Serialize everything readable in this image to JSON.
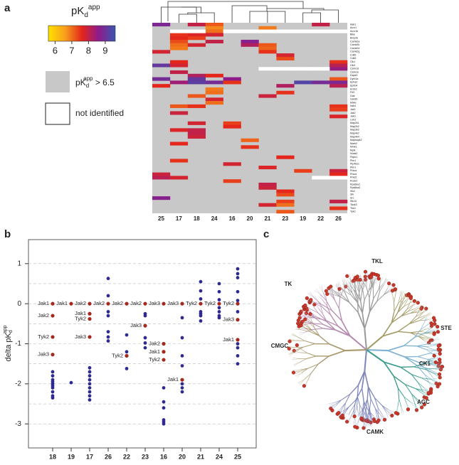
{
  "chart_data": [
    {
      "type": "heatmap",
      "panel": "a",
      "legend_title": [
        "pK",
        "d",
        "app"
      ],
      "colorscale": [
        "#ffe100",
        "#f7a01c",
        "#e4261b",
        "#8e1b8a",
        "#3a55b0"
      ],
      "clim": [
        5.6,
        9.6
      ],
      "cticks": [
        6,
        7,
        8,
        9
      ],
      "gray_label": [
        "pK",
        "d",
        "app",
        " > 6.5"
      ],
      "gray_color": "#c8c8c8",
      "missing_label": "not identified",
      "columns": [
        "25",
        "17",
        "18",
        "24",
        "16",
        "20",
        "21",
        "23",
        "19",
        "22",
        "26"
      ],
      "rows": [
        "Aak1",
        "Acvr1",
        "Acvr1b",
        "Bike",
        "Bmp2k",
        "Camk2a",
        "Camk2b",
        "Camk2d",
        "Camk2g",
        "Cdk5",
        "Cdk9",
        "Clk1",
        "Clk3",
        "Csnk1d",
        "Csnk1e",
        "Dapk3",
        "Dyrk1a",
        "Epha2",
        "Ephb4",
        "Erbb2",
        "Flt3",
        "Gak",
        "Gsk3b",
        "Ikbke",
        "Irak4",
        "Jak1",
        "Jak2",
        "Jak3",
        "Lrrk2",
        "Map2k1",
        "Map2k2",
        "Map3k2",
        "Map4k2",
        "Map4k4",
        "Mapkapk2",
        "Mark2",
        "Mink1",
        "Mylk",
        "Nuak2",
        "Pdpk1",
        "Pim1",
        "Pip4k2c",
        "Pkn1",
        "Prkca",
        "Prkcd",
        "Prkd2",
        "Rock2",
        "Rps6ka1",
        "Rps6ka3",
        "Sik2",
        "Slk",
        "Src",
        "Stk10",
        "Taok3",
        "Tbk1",
        "Tyk2"
      ],
      "values": [
        [
          8.8,
          null,
          8.0,
          7.2,
          null,
          null,
          null,
          null,
          null,
          8.0,
          null
        ],
        [
          null,
          null,
          null,
          6.8,
          null,
          null,
          6.9,
          null,
          null,
          null,
          null
        ],
        [
          null,
          null,
          null,
          7.0,
          null,
          null,
          null,
          null,
          null,
          null,
          null
        ],
        [
          null,
          7.5,
          7.7,
          7.8,
          null,
          null,
          null,
          null,
          null,
          null,
          null
        ],
        [
          null,
          7.6,
          7.4,
          null,
          null,
          null,
          null,
          null,
          null,
          null,
          null
        ],
        [
          null,
          7.3,
          null,
          8.0,
          null,
          8.7,
          null,
          null,
          null,
          null,
          null
        ],
        [
          null,
          7.0,
          7.8,
          null,
          null,
          8.2,
          7.2,
          null,
          null,
          null,
          null
        ],
        [
          null,
          6.9,
          null,
          null,
          null,
          null,
          7.1,
          null,
          null,
          null,
          null
        ],
        [
          7.8,
          null,
          null,
          null,
          null,
          null,
          7.5,
          null,
          null,
          null,
          null
        ],
        [
          null,
          null,
          null,
          null,
          null,
          null,
          null,
          7.8,
          null,
          null,
          null
        ],
        [
          null,
          null,
          null,
          null,
          null,
          null,
          null,
          7.3,
          null,
          null,
          null
        ],
        [
          null,
          7.6,
          null,
          null,
          null,
          null,
          null,
          null,
          null,
          null,
          7.5
        ],
        [
          9.1,
          7.8,
          null,
          null,
          null,
          null,
          null,
          null,
          null,
          null,
          8.1
        ],
        [
          null,
          null,
          null,
          null,
          null,
          null,
          null,
          null,
          null,
          null,
          8.5
        ],
        [
          null,
          8.0,
          null,
          null,
          null,
          null,
          null,
          null,
          null,
          null,
          null
        ],
        [
          null,
          null,
          8.2,
          7.6,
          null,
          null,
          null,
          null,
          null,
          null,
          null
        ],
        [
          8.9,
          null,
          9.1,
          null,
          8.6,
          null,
          null,
          null,
          null,
          null,
          7.2
        ],
        [
          null,
          8.4,
          9.2,
          8.9,
          7.5,
          null,
          null,
          null,
          9.3,
          8.9,
          8.8
        ],
        [
          7.6,
          null,
          null,
          null,
          null,
          null,
          null,
          8.2,
          null,
          null,
          8.1
        ],
        [
          null,
          null,
          null,
          6.9,
          null,
          null,
          null,
          null,
          null,
          null,
          null
        ],
        [
          null,
          null,
          null,
          7.0,
          null,
          null,
          null,
          7.5,
          null,
          null,
          null
        ],
        [
          null,
          null,
          7.2,
          null,
          null,
          null,
          7.9,
          null,
          null,
          null,
          null
        ],
        [
          null,
          null,
          null,
          7.8,
          null,
          null,
          null,
          null,
          null,
          null,
          null
        ],
        [
          null,
          null,
          null,
          7.0,
          null,
          null,
          null,
          null,
          null,
          null,
          null
        ],
        [
          null,
          7.2,
          7.5,
          null,
          null,
          null,
          null,
          null,
          null,
          null,
          7.5
        ],
        [
          null,
          null,
          null,
          null,
          null,
          null,
          null,
          null,
          null,
          null,
          7.4
        ],
        [
          null,
          7.9,
          null,
          null,
          null,
          null,
          null,
          null,
          null,
          null,
          null
        ],
        [
          null,
          null,
          null,
          null,
          null,
          null,
          null,
          null,
          null,
          null,
          7.7
        ],
        [
          null,
          null,
          null,
          null,
          null,
          null,
          null,
          null,
          null,
          null,
          null
        ],
        [
          null,
          null,
          7.8,
          null,
          7.4,
          null,
          null,
          null,
          null,
          null,
          null
        ],
        [
          null,
          null,
          null,
          null,
          7.6,
          null,
          null,
          null,
          null,
          null,
          null
        ],
        [
          null,
          7.7,
          8.0,
          null,
          null,
          null,
          null,
          null,
          null,
          null,
          null
        ],
        [
          null,
          null,
          8.0,
          null,
          null,
          null,
          null,
          null,
          null,
          null,
          null
        ],
        [
          null,
          null,
          7.9,
          null,
          null,
          null,
          null,
          null,
          null,
          null,
          null
        ],
        [
          null,
          null,
          null,
          null,
          null,
          7.1,
          null,
          null,
          null,
          null,
          null
        ],
        [
          null,
          7.6,
          null,
          null,
          null,
          null,
          null,
          null,
          null,
          null,
          null
        ],
        [
          null,
          null,
          null,
          null,
          null,
          7.5,
          null,
          null,
          null,
          null,
          null
        ],
        [
          null,
          null,
          null,
          null,
          null,
          null,
          null,
          null,
          null,
          null,
          null
        ],
        [
          null,
          null,
          null,
          null,
          null,
          null,
          null,
          null,
          null,
          null,
          null
        ],
        [
          null,
          null,
          null,
          null,
          null,
          null,
          null,
          7.6,
          null,
          null,
          null
        ],
        [
          null,
          7.5,
          null,
          null,
          null,
          null,
          null,
          null,
          null,
          null,
          null
        ],
        [
          null,
          null,
          null,
          null,
          7.8,
          null,
          null,
          null,
          null,
          null,
          null
        ],
        [
          null,
          null,
          null,
          null,
          null,
          null,
          7.7,
          null,
          null,
          null,
          null
        ],
        [
          null,
          null,
          null,
          null,
          null,
          null,
          null,
          null,
          7.4,
          null,
          7.9
        ],
        [
          7.9,
          null,
          null,
          null,
          null,
          null,
          null,
          null,
          null,
          null,
          7.6
        ],
        [
          8.1,
          7.8,
          null,
          null,
          null,
          null,
          null,
          null,
          null,
          null,
          null
        ],
        [
          null,
          null,
          null,
          null,
          7.4,
          null,
          null,
          null,
          null,
          null,
          null
        ],
        [
          null,
          null,
          null,
          null,
          null,
          null,
          8.0,
          null,
          null,
          null,
          null
        ],
        [
          null,
          null,
          null,
          null,
          null,
          null,
          7.9,
          null,
          null,
          null,
          null
        ],
        [
          null,
          null,
          null,
          null,
          null,
          null,
          null,
          7.6,
          null,
          null,
          null
        ],
        [
          null,
          null,
          null,
          null,
          null,
          null,
          null,
          7.3,
          null,
          null,
          null
        ],
        [
          8.7,
          null,
          null,
          null,
          null,
          null,
          null,
          null,
          null,
          null,
          null
        ],
        [
          null,
          null,
          null,
          null,
          null,
          null,
          null,
          7.4,
          null,
          null,
          8.0
        ],
        [
          null,
          null,
          null,
          null,
          null,
          null,
          7.8,
          7.0,
          null,
          null,
          null
        ],
        [
          null,
          null,
          null,
          null,
          null,
          null,
          null,
          null,
          null,
          null,
          7.5
        ],
        [
          null,
          null,
          null,
          null,
          null,
          null,
          null,
          7.2,
          null,
          null,
          null
        ]
      ],
      "not_identified": [
        [
          2,
          1
        ],
        [
          2,
          2
        ],
        [
          2,
          4
        ],
        [
          2,
          5
        ],
        [
          2,
          6
        ],
        [
          2,
          7
        ],
        [
          2,
          8
        ],
        [
          2,
          9
        ],
        [
          2,
          10
        ],
        [
          13,
          6
        ],
        [
          13,
          7
        ],
        [
          13,
          8
        ],
        [
          13,
          9
        ],
        [
          45,
          9
        ],
        [
          45,
          10
        ]
      ]
    },
    {
      "type": "strip",
      "panel": "b",
      "ylabel": [
        "delta pK",
        "d",
        "app"
      ],
      "categories": [
        "18",
        "19",
        "17",
        "26",
        "22",
        "23",
        "16",
        "20",
        "21",
        "24",
        "25"
      ],
      "ylim": [
        -3.6,
        1.6
      ],
      "yticks": [
        -3,
        -2,
        -1,
        0,
        1
      ],
      "ygrid": [
        -3,
        -2.5,
        -2,
        -1.5,
        -1,
        -0.5,
        0,
        0.5,
        1
      ],
      "point_color": "#2f2a8e",
      "highlight_color": "#a52a1e",
      "points": [
        [
          -1.7,
          -1.8,
          -1.9,
          -1.95,
          -2.0,
          -2.05,
          -2.1,
          -2.2,
          -2.3,
          -2.35
        ],
        [
          -1.97
        ],
        [
          -1.6,
          -1.7,
          -1.8,
          -1.9,
          -2.0,
          -2.1,
          -2.2,
          -2.3,
          -2.4
        ],
        [
          0.63,
          0.2,
          -0.2,
          -0.3,
          -0.7,
          -0.83,
          -0.93
        ],
        [
          -0.78,
          -1.2,
          -1.62
        ],
        [
          -0.25,
          -0.3,
          -0.85,
          -0.98,
          -1.1
        ],
        [
          -2.1,
          -2.45,
          -2.6,
          -2.9,
          -2.95,
          -3.0
        ],
        [
          -0.35,
          -0.85,
          -1.3,
          -1.55,
          -2.0,
          -2.1,
          -2.2
        ],
        [
          0.55,
          0.32,
          0.12,
          -0.2,
          -0.25,
          -0.3,
          -0.43
        ],
        [
          0.5,
          0.3,
          0.1,
          -0.1,
          -0.2,
          -0.3,
          -0.35
        ],
        [
          0.87,
          0.75,
          0.65,
          0.3,
          0.08,
          -0.2,
          -1.0,
          -1.1,
          -1.3,
          -1.5
        ]
      ],
      "highlights": [
        {
          "x": "18",
          "y": 0,
          "label": "Jak1"
        },
        {
          "x": "18",
          "y": -0.3,
          "label": "Jak2"
        },
        {
          "x": "18",
          "y": -0.83,
          "label": "Tyk2"
        },
        {
          "x": "18",
          "y": -1.27,
          "label": "Jak3"
        },
        {
          "x": "19",
          "y": 0,
          "label": "Jak1"
        },
        {
          "x": "17",
          "y": 0,
          "label": "Jak2"
        },
        {
          "x": "17",
          "y": -0.25,
          "label": "Jak1"
        },
        {
          "x": "17",
          "y": -0.38,
          "label": "Tyk2"
        },
        {
          "x": "17",
          "y": -0.83,
          "label": "Jak3"
        },
        {
          "x": "26",
          "y": 0,
          "label": "Jak2"
        },
        {
          "x": "22",
          "y": 0,
          "label": "Jak2"
        },
        {
          "x": "22",
          "y": -1.3,
          "label": "Tyk2"
        },
        {
          "x": "23",
          "y": 0,
          "label": "Jak2"
        },
        {
          "x": "23",
          "y": -0.55,
          "label": "Jak3"
        },
        {
          "x": "16",
          "y": 0,
          "label": "Jak3"
        },
        {
          "x": "16",
          "y": -1.0,
          "label": "Jak2"
        },
        {
          "x": "16",
          "y": -1.2,
          "label": "Jak1"
        },
        {
          "x": "16",
          "y": -1.4,
          "label": "Tyk2"
        },
        {
          "x": "20",
          "y": 0,
          "label": "Jak3"
        },
        {
          "x": "20",
          "y": -1.9,
          "label": "Jak1"
        },
        {
          "x": "21",
          "y": 0,
          "label": "Tyk2"
        },
        {
          "x": "24",
          "y": 0,
          "label": "Tyk2"
        },
        {
          "x": "25",
          "y": 0,
          "label": "Tyk2"
        },
        {
          "x": "25",
          "y": -0.4,
          "label": "Jak3"
        },
        {
          "x": "25",
          "y": -0.9,
          "label": "Jak1"
        }
      ]
    },
    {
      "type": "kinome-tree",
      "panel": "c",
      "groups": [
        "TK",
        "TKL",
        "STE",
        "CK1",
        "AGC",
        "CAMK",
        "CMGC"
      ]
    }
  ]
}
